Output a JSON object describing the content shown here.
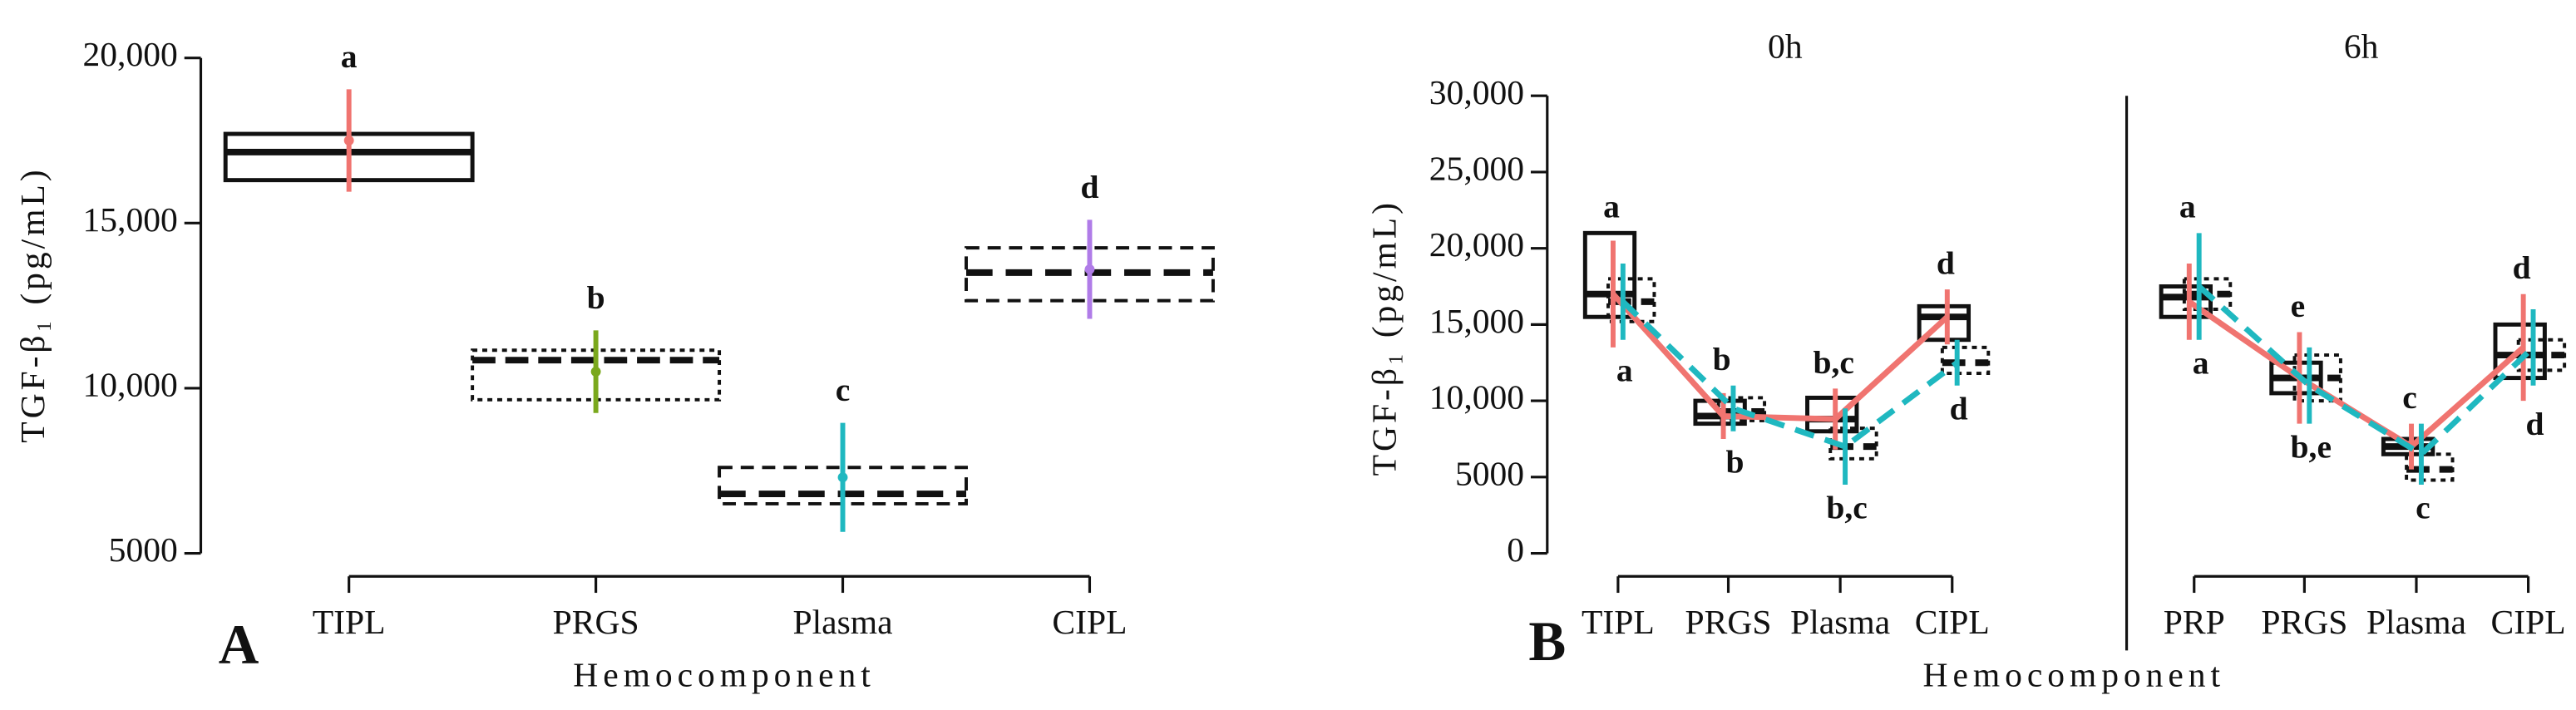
{
  "chart_data": [
    {
      "type": "box",
      "panel_label": "A",
      "x_label": "Hemocomponent",
      "y_label": "TGF-β₁ (pg/mL)",
      "categories": [
        "TIPL",
        "PRGS",
        "Plasma",
        "CIPL"
      ],
      "ylim": [
        5000,
        20000
      ],
      "yticks": [
        5000,
        {
          "value": 10000,
          "label": "10,000"
        },
        {
          "value": 15000,
          "label": "15,000"
        },
        {
          "value": 20000,
          "label": "20,000"
        }
      ],
      "box_low": [
        16300,
        9650,
        6500,
        12650
      ],
      "box_median": [
        17150,
        10850,
        6800,
        13500
      ],
      "box_high": [
        17700,
        11150,
        7600,
        14250
      ],
      "box_styles": [
        "solid",
        "dotted",
        "dashed",
        "dashed"
      ],
      "means": [
        17500,
        10500,
        7300,
        13600
      ],
      "errors": [
        1550,
        1250,
        1650,
        1500
      ],
      "colors": [
        "#f07470",
        "#7aa81c",
        "#1fb8c0",
        "#b07ce8"
      ],
      "letters": [
        "a",
        "b",
        "c",
        "d"
      ]
    },
    {
      "type": "line",
      "panel_label": "B",
      "x_label": "Hemocomponent",
      "y_label": "TGF-β₁ (pg/mL)",
      "ylim": [
        0,
        30000
      ],
      "yticks": [
        0,
        5000,
        {
          "value": 10000,
          "label": "10,000"
        },
        {
          "value": 15000,
          "label": "15,000"
        },
        {
          "value": 20000,
          "label": "20,000"
        },
        {
          "value": 25000,
          "label": "25,000"
        },
        {
          "value": 30000,
          "label": "30,000"
        }
      ],
      "facets": [
        {
          "title": "0h",
          "categories": [
            "TIPL",
            "PRGS",
            "Plasma",
            "CIPL"
          ],
          "series": [
            {
              "color": "#f07470",
              "style": "solid",
              "values": [
                17000,
                9000,
                8800,
                15500
              ],
              "errors": [
                3500,
                1500,
                2000,
                1800
              ]
            },
            {
              "color": "#1fb8c0",
              "style": "dashed",
              "values": [
                16500,
                9500,
                7000,
                12500
              ],
              "errors": [
                2500,
                1500,
                2500,
                1500
              ]
            }
          ],
          "boxes": [
            {
              "style": "solid",
              "low": [
                15500,
                8500,
                8000,
                14000
              ],
              "median": [
                17000,
                9000,
                8800,
                15500
              ],
              "high": [
                21000,
                10000,
                10200,
                16200
              ]
            },
            {
              "style": "dotted",
              "low": [
                15200,
                8700,
                6200,
                11800
              ],
              "median": [
                16500,
                9300,
                7000,
                12500
              ],
              "high": [
                18000,
                10200,
                8200,
                13500
              ]
            }
          ],
          "letters_top": [
            "a",
            "b",
            "b,c",
            "d"
          ],
          "letters_bottom": [
            "a",
            "b",
            "b,c",
            "d"
          ]
        },
        {
          "title": "6h",
          "categories": [
            "PRP",
            "PRGS",
            "Plasma",
            "CIPL"
          ],
          "series": [
            {
              "color": "#f07470",
              "style": "solid",
              "values": [
                16500,
                11500,
                7000,
                13500
              ],
              "errors": [
                2500,
                3000,
                1500,
                3500
              ]
            },
            {
              "color": "#1fb8c0",
              "style": "dashed",
              "values": [
                17500,
                11000,
                6500,
                13500
              ],
              "errors": [
                3500,
                2500,
                2000,
                2500
              ]
            }
          ],
          "boxes": [
            {
              "style": "solid",
              "low": [
                15500,
                10500,
                6500,
                11500
              ],
              "median": [
                16800,
                11500,
                7000,
                13000
              ],
              "high": [
                17500,
                12500,
                7500,
                15000
              ]
            },
            {
              "style": "dotted",
              "low": [
                16000,
                10000,
                4800,
                12000
              ],
              "median": [
                17000,
                11500,
                5500,
                13000
              ],
              "high": [
                18000,
                13000,
                6500,
                14000
              ]
            }
          ],
          "letters_top": [
            "a",
            "e",
            "c",
            "d"
          ],
          "letters_bottom": [
            "a",
            "b,e",
            "c",
            "d"
          ]
        }
      ]
    }
  ]
}
